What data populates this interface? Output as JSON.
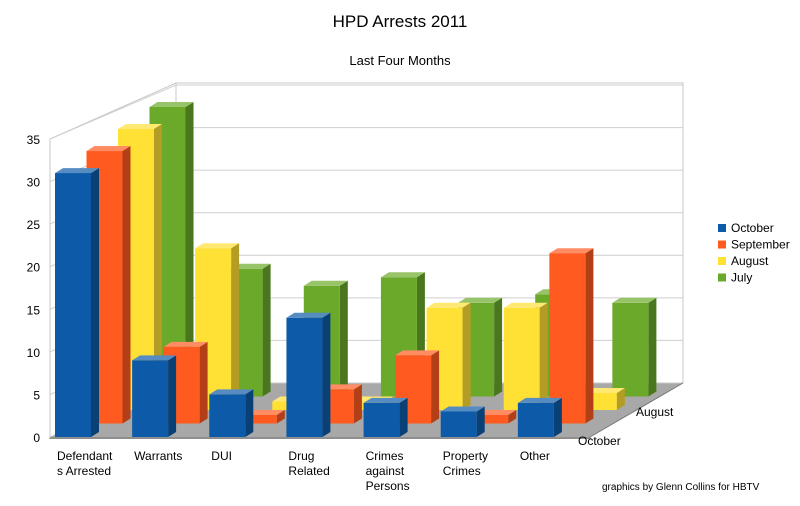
{
  "chart_data": {
    "type": "bar",
    "title": "HPD Arrests 2011",
    "subtitle": "Last Four Months",
    "credit": "graphics by Glenn Collins for HBTV",
    "categories": [
      "Defendants Arrested",
      "Warrants",
      "DUI",
      "Drug Related",
      "Crimes against Persons",
      "Property Crimes",
      "Other"
    ],
    "category_labels": [
      [
        "Defendant",
        "s Arrested"
      ],
      [
        "Warrants"
      ],
      [
        "DUI"
      ],
      [
        "Drug",
        "Related"
      ],
      [
        "Crimes",
        "against",
        "Persons"
      ],
      [
        "Property",
        "Crimes"
      ],
      [
        "Other"
      ]
    ],
    "series": [
      {
        "name": "October",
        "color": "#0d5ba8",
        "values": [
          31,
          9,
          5,
          14,
          4,
          3,
          4
        ]
      },
      {
        "name": "September",
        "color": "#ff5a1f",
        "values": [
          32,
          9,
          1,
          4,
          8,
          1,
          20
        ]
      },
      {
        "name": "August",
        "color": "#ffe035",
        "values": [
          33,
          19,
          1,
          1,
          12,
          12,
          2
        ]
      },
      {
        "name": "July",
        "color": "#6aa929",
        "values": [
          34,
          15,
          13,
          14,
          11,
          12,
          11
        ]
      }
    ],
    "legend_order": [
      "October",
      "September",
      "August",
      "July"
    ],
    "depth_axis_labels": [
      "October",
      "August"
    ],
    "ylim": [
      0,
      35
    ],
    "yticks": [
      0,
      5,
      10,
      15,
      20,
      25,
      30,
      35
    ],
    "grid": true,
    "legend_position": "right",
    "three_d": true
  }
}
